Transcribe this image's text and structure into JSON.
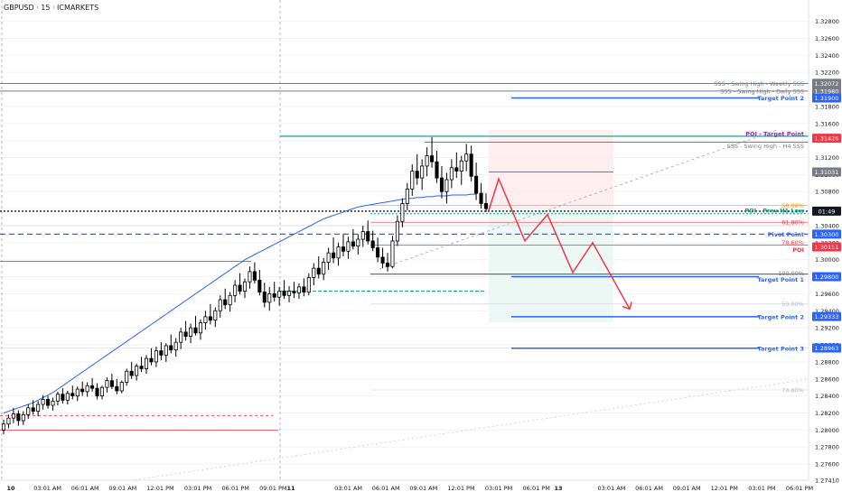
{
  "chart_title": "GBPUSD · 15 · ICMARKETS",
  "chart_data": {
    "type": "candlestick",
    "symbol": "GBPUSD",
    "timeframe": "15",
    "broker": "ICMARKETS",
    "ylim": [
      1.2741,
      1.3305
    ],
    "y_ticks": [
      {
        "v": 1.328,
        "label": "1.32800"
      },
      {
        "v": 1.326,
        "label": "1.32600"
      },
      {
        "v": 1.324,
        "label": "1.32400"
      },
      {
        "v": 1.322,
        "label": "1.32200"
      },
      {
        "v": 1.32,
        "label": "1.32000"
      },
      {
        "v": 1.318,
        "label": "1.31800"
      },
      {
        "v": 1.316,
        "label": "1.31600"
      },
      {
        "v": 1.314,
        "label": "1.31400"
      },
      {
        "v": 1.312,
        "label": "1.31200"
      },
      {
        "v": 1.31,
        "label": "1.31000"
      },
      {
        "v": 1.308,
        "label": "1.30800"
      },
      {
        "v": 1.306,
        "label": "1.30600"
      },
      {
        "v": 1.304,
        "label": "1.30400"
      },
      {
        "v": 1.302,
        "label": "1.30200"
      },
      {
        "v": 1.3,
        "label": "1.30000"
      },
      {
        "v": 1.298,
        "label": "1.29800"
      },
      {
        "v": 1.296,
        "label": "1.29600"
      },
      {
        "v": 1.294,
        "label": "1.29400"
      },
      {
        "v": 1.292,
        "label": "1.29200"
      },
      {
        "v": 1.29,
        "label": "1.29000"
      },
      {
        "v": 1.288,
        "label": "1.28800"
      },
      {
        "v": 1.286,
        "label": "1.28600"
      },
      {
        "v": 1.284,
        "label": "1.28400"
      },
      {
        "v": 1.282,
        "label": "1.28200"
      },
      {
        "v": 1.28,
        "label": "1.28000"
      },
      {
        "v": 1.278,
        "label": "1.27800"
      },
      {
        "v": 1.276,
        "label": "1.27600"
      },
      {
        "v": 1.2741,
        "label": "1.27410"
      }
    ],
    "x_ticks": [
      {
        "label": "10",
        "bold": true
      },
      {
        "label": "03:01 AM"
      },
      {
        "label": "06:01 AM"
      },
      {
        "label": "09:01 AM"
      },
      {
        "label": "12:01 PM"
      },
      {
        "label": "03:01 PM"
      },
      {
        "label": "06:01 PM"
      },
      {
        "label": "09:01 PM"
      },
      {
        "label": "11",
        "bold": true
      },
      {
        "label": "03:01 AM"
      },
      {
        "label": "06:01 AM"
      },
      {
        "label": "09:01 AM"
      },
      {
        "label": "12:01 PM"
      },
      {
        "label": "03:01 PM"
      },
      {
        "label": "06:01 PM"
      },
      {
        "label": "13",
        "bold": true
      },
      {
        "label": "03:01 AM"
      },
      {
        "label": "06:01 AM"
      },
      {
        "label": "09:01 AM"
      },
      {
        "label": "12:01 PM"
      },
      {
        "label": "03:01 PM"
      },
      {
        "label": "06:01 PM"
      }
    ],
    "day_separators": [
      "10",
      "11"
    ],
    "price_badges": [
      {
        "v": 1.32072,
        "label": "1.32072",
        "color": "#787b86"
      },
      {
        "v": 1.3198,
        "label": "1.31980",
        "color": "#787b86"
      },
      {
        "v": 1.319,
        "label": "1.31900",
        "color": "#2962ff"
      },
      {
        "v": 1.31426,
        "label": "1.31426",
        "color": "#f23645"
      },
      {
        "v": 1.31031,
        "label": "1.31031",
        "color": "#787b86"
      },
      {
        "v": 1.3057,
        "label": "01:49",
        "color": "#131722"
      },
      {
        "v": 1.303,
        "label": "1.30300",
        "color": "#2962ff"
      },
      {
        "v": 1.30151,
        "label": "1.30151",
        "color": "#f23645"
      },
      {
        "v": 1.298,
        "label": "1.29800",
        "color": "#2962ff"
      },
      {
        "v": 1.29333,
        "label": "1.29333",
        "color": "#2962ff"
      },
      {
        "v": 1.28963,
        "label": "1.28963",
        "color": "#2962ff"
      }
    ],
    "levels": [
      {
        "v": 1.3207,
        "label": "SSS - Swing High - Weekly SSS",
        "color": "#787b86"
      },
      {
        "v": 1.3198,
        "label": "SSS - Swing High - Daily SSS",
        "color": "#787b86"
      },
      {
        "v": 1.319,
        "label": "Target Point 2",
        "color": "#2962ff"
      },
      {
        "v": 1.3145,
        "label": "POI - Target Point",
        "color": "#9c27b0"
      },
      {
        "v": 1.3138,
        "label": "SSS - Swing High - H4 SSS",
        "color": "#787b86"
      },
      {
        "v": 1.3064,
        "label": "50.00%",
        "color": "#ff9800"
      },
      {
        "v": 1.3058,
        "label": "POI - Prev H1 Low",
        "color": "#089981"
      },
      {
        "v": 1.3044,
        "label": "61.80%",
        "color": "#f23645"
      },
      {
        "v": 1.303,
        "label": "Pivot Point",
        "color": "#2962ff"
      },
      {
        "v": 1.3017,
        "label": "78.60%",
        "color": "#f23645"
      },
      {
        "v": 1.3015,
        "label": "POI",
        "color": "#f23645"
      },
      {
        "v": 1.2983,
        "label": "100.00%",
        "color": "#787b86"
      },
      {
        "v": 1.298,
        "label": "Target Point 1",
        "color": "#2962ff"
      },
      {
        "v": 1.2948,
        "label": "50.00%",
        "color": "#b2b5be"
      },
      {
        "v": 1.2933,
        "label": "Target Point 2",
        "color": "#2962ff"
      },
      {
        "v": 1.2896,
        "label": "Target Point 3",
        "color": "#2962ff"
      },
      {
        "v": 1.2847,
        "label": "74.60%",
        "color": "#b2b5be"
      }
    ],
    "candles": [
      [
        1.28,
        1.2812,
        1.2795,
        1.2807
      ],
      [
        1.2807,
        1.2818,
        1.2802,
        1.2814
      ],
      [
        1.2814,
        1.2826,
        1.2808,
        1.2819
      ],
      [
        1.2819,
        1.2823,
        1.2805,
        1.2811
      ],
      [
        1.2811,
        1.2822,
        1.2806,
        1.2818
      ],
      [
        1.2818,
        1.283,
        1.2813,
        1.2826
      ],
      [
        1.2826,
        1.2835,
        1.2818,
        1.2822
      ],
      [
        1.2822,
        1.2834,
        1.2816,
        1.283
      ],
      [
        1.283,
        1.2841,
        1.2824,
        1.2836
      ],
      [
        1.2836,
        1.284,
        1.2825,
        1.2829
      ],
      [
        1.2829,
        1.2838,
        1.2823,
        1.2834
      ],
      [
        1.2834,
        1.2845,
        1.2829,
        1.2842
      ],
      [
        1.2842,
        1.2849,
        1.2831,
        1.2835
      ],
      [
        1.2835,
        1.2846,
        1.283,
        1.2843
      ],
      [
        1.2843,
        1.2852,
        1.2836,
        1.284
      ],
      [
        1.284,
        1.2851,
        1.2834,
        1.2848
      ],
      [
        1.2848,
        1.2857,
        1.284,
        1.2845
      ],
      [
        1.2845,
        1.2856,
        1.2839,
        1.2852
      ],
      [
        1.2852,
        1.2861,
        1.2845,
        1.2849
      ],
      [
        1.2849,
        1.2855,
        1.2836,
        1.284
      ],
      [
        1.284,
        1.2852,
        1.2836,
        1.285
      ],
      [
        1.285,
        1.2862,
        1.2844,
        1.2858
      ],
      [
        1.2858,
        1.2866,
        1.2848,
        1.2851
      ],
      [
        1.2851,
        1.286,
        1.2842,
        1.2846
      ],
      [
        1.2846,
        1.2858,
        1.2843,
        1.2856
      ],
      [
        1.2856,
        1.2872,
        1.2852,
        1.2869
      ],
      [
        1.2869,
        1.288,
        1.286,
        1.2864
      ],
      [
        1.2864,
        1.2878,
        1.2858,
        1.2875
      ],
      [
        1.2875,
        1.2886,
        1.2868,
        1.2872
      ],
      [
        1.2872,
        1.2888,
        1.2866,
        1.2884
      ],
      [
        1.2884,
        1.2896,
        1.2876,
        1.288
      ],
      [
        1.288,
        1.2898,
        1.2874,
        1.2893
      ],
      [
        1.2893,
        1.2903,
        1.2882,
        1.2888
      ],
      [
        1.2888,
        1.2902,
        1.288,
        1.2899
      ],
      [
        1.2899,
        1.2912,
        1.289,
        1.2894
      ],
      [
        1.2894,
        1.2908,
        1.2886,
        1.2903
      ],
      [
        1.2903,
        1.292,
        1.2895,
        1.2915
      ],
      [
        1.2915,
        1.2928,
        1.2905,
        1.291
      ],
      [
        1.291,
        1.2925,
        1.2902,
        1.292
      ],
      [
        1.292,
        1.2934,
        1.2911,
        1.2914
      ],
      [
        1.2914,
        1.293,
        1.2906,
        1.2926
      ],
      [
        1.2926,
        1.294,
        1.2918,
        1.2933
      ],
      [
        1.2933,
        1.2948,
        1.2924,
        1.2929
      ],
      [
        1.2929,
        1.2944,
        1.2921,
        1.294
      ],
      [
        1.294,
        1.2958,
        1.2932,
        1.2953
      ],
      [
        1.2953,
        1.2966,
        1.2942,
        1.2947
      ],
      [
        1.2947,
        1.2962,
        1.2939,
        1.2958
      ],
      [
        1.2958,
        1.2976,
        1.295,
        1.297
      ],
      [
        1.297,
        1.2984,
        1.2959,
        1.2963
      ],
      [
        1.2963,
        1.2978,
        1.2955,
        1.2974
      ],
      [
        1.2974,
        1.2992,
        1.2966,
        1.2986
      ],
      [
        1.2986,
        1.2997,
        1.2972,
        1.2976
      ],
      [
        1.2976,
        1.2988,
        1.2958,
        1.2962
      ],
      [
        1.2962,
        1.2973,
        1.2944,
        1.295
      ],
      [
        1.295,
        1.2968,
        1.294,
        1.296
      ],
      [
        1.296,
        1.2974,
        1.2951,
        1.2956
      ],
      [
        1.2956,
        1.2968,
        1.2946,
        1.2963
      ],
      [
        1.2963,
        1.2976,
        1.2954,
        1.2958
      ],
      [
        1.2958,
        1.2969,
        1.295,
        1.2963
      ],
      [
        1.2963,
        1.2974,
        1.2955,
        1.2961
      ],
      [
        1.2961,
        1.2972,
        1.2954,
        1.2968
      ],
      [
        1.2968,
        1.2978,
        1.2957,
        1.2962
      ],
      [
        1.2962,
        1.2984,
        1.2958,
        1.2979
      ],
      [
        1.2979,
        1.2996,
        1.297,
        1.299
      ],
      [
        1.299,
        1.3004,
        1.2978,
        1.2983
      ],
      [
        1.2983,
        1.3002,
        1.2976,
        1.2997
      ],
      [
        1.2997,
        1.3014,
        1.2988,
        1.3008
      ],
      [
        1.3008,
        1.3026,
        1.2996,
        1.3002
      ],
      [
        1.3002,
        1.302,
        1.2993,
        1.3015
      ],
      [
        1.3015,
        1.303,
        1.3004,
        1.301
      ],
      [
        1.301,
        1.3027,
        1.3001,
        1.3021
      ],
      [
        1.3021,
        1.3036,
        1.3012,
        1.3016
      ],
      [
        1.3016,
        1.303,
        1.3006,
        1.3024
      ],
      [
        1.3024,
        1.304,
        1.3015,
        1.3033
      ],
      [
        1.3033,
        1.3046,
        1.3018,
        1.3022
      ],
      [
        1.3022,
        1.3034,
        1.301,
        1.3014
      ],
      [
        1.3014,
        1.3026,
        1.2997,
        1.3003
      ],
      [
        1.3003,
        1.3014,
        1.299,
        1.2996
      ],
      [
        1.2996,
        1.3008,
        1.2986,
        1.2992
      ],
      [
        1.2992,
        1.3028,
        1.299,
        1.3022
      ],
      [
        1.3022,
        1.3052,
        1.3016,
        1.3045
      ],
      [
        1.3045,
        1.3072,
        1.3038,
        1.3066
      ],
      [
        1.3066,
        1.309,
        1.3058,
        1.3083
      ],
      [
        1.3083,
        1.3112,
        1.3075,
        1.3104
      ],
      [
        1.3104,
        1.3124,
        1.3088,
        1.3096
      ],
      [
        1.3096,
        1.3118,
        1.3082,
        1.311
      ],
      [
        1.311,
        1.3132,
        1.3098,
        1.3122
      ],
      [
        1.3122,
        1.3144,
        1.3108,
        1.3115
      ],
      [
        1.3115,
        1.3128,
        1.309,
        1.3096
      ],
      [
        1.3096,
        1.311,
        1.3072,
        1.308
      ],
      [
        1.308,
        1.3102,
        1.3066,
        1.3094
      ],
      [
        1.3094,
        1.3118,
        1.3084,
        1.3108
      ],
      [
        1.3108,
        1.3126,
        1.3096,
        1.3104
      ],
      [
        1.3104,
        1.3122,
        1.3088,
        1.3116
      ],
      [
        1.3116,
        1.3136,
        1.3104,
        1.3124
      ],
      [
        1.3124,
        1.3134,
        1.3092,
        1.3098
      ],
      [
        1.3098,
        1.3114,
        1.307,
        1.3078
      ],
      [
        1.3078,
        1.309,
        1.306,
        1.3066
      ],
      [
        1.3066,
        1.3078,
        1.3056,
        1.306
      ]
    ],
    "ma": [
      1.282,
      1.2822,
      1.2824,
      1.2826,
      1.2828,
      1.283,
      1.2832,
      1.2835,
      1.2838,
      1.2841,
      1.2844,
      1.2848,
      1.2852,
      1.2856,
      1.286,
      1.2864,
      1.2868,
      1.2872,
      1.2876,
      1.288,
      1.2884,
      1.2888,
      1.2892,
      1.2896,
      1.29,
      1.2904,
      1.2908,
      1.2912,
      1.2916,
      1.292,
      1.2924,
      1.2928,
      1.2932,
      1.2936,
      1.294,
      1.2944,
      1.2948,
      1.2952,
      1.2956,
      1.296,
      1.2964,
      1.2968,
      1.2972,
      1.2976,
      1.298,
      1.2984,
      1.2988,
      1.2992,
      1.2996,
      1.3,
      1.3003,
      1.3006,
      1.3009,
      1.3012,
      1.3015,
      1.3018,
      1.3021,
      1.3024,
      1.3027,
      1.303,
      1.3033,
      1.3036,
      1.3039,
      1.3042,
      1.3045,
      1.3048,
      1.305,
      1.3052,
      1.3054,
      1.3056,
      1.3058,
      1.306,
      1.3062,
      1.3063,
      1.3064,
      1.3065,
      1.3066,
      1.3067,
      1.3068,
      1.3069,
      1.307,
      1.3071,
      1.3072,
      1.3072,
      1.3073,
      1.3073,
      1.3074,
      1.3074,
      1.3075,
      1.3075,
      1.3075,
      1.3076,
      1.3076,
      1.3076,
      1.3076,
      1.3077,
      1.3077
    ],
    "projection_path": [
      1.3058,
      1.3095,
      1.3022,
      1.3053,
      1.2985,
      1.302,
      1.2942
    ],
    "colors": {
      "bull": "#ffffff",
      "bear": "#000000",
      "ma": "#2962ff",
      "projection": "#f23645",
      "loss_zone": "#fde7e9",
      "profit_zone": "#e9f6f3"
    }
  }
}
